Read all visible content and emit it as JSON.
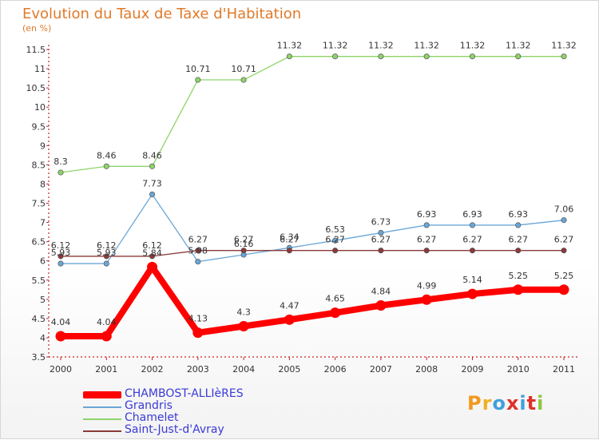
{
  "title": "Evolution du Taux de Taxe d'Habitation",
  "subtitle": "(en %)",
  "logo": {
    "letters": [
      "P",
      "r",
      "o",
      "x",
      "i",
      "t",
      "i"
    ],
    "colors": [
      "#f29a1d",
      "#f0b025",
      "#3fa0dc",
      "#e0302a",
      "#3fa0dc",
      "#e0302a",
      "#8cc63e"
    ]
  },
  "chart_data": {
    "type": "line",
    "x": [
      "2000",
      "2001",
      "2002",
      "2003",
      "2004",
      "2005",
      "2006",
      "2007",
      "2008",
      "2009",
      "2010",
      "2011"
    ],
    "ylim": [
      3.5,
      11.5
    ],
    "yticks": [
      "3.5",
      "4",
      "4.5",
      "5",
      "5.5",
      "6",
      "6.5",
      "7",
      "7.5",
      "8",
      "8.5",
      "9",
      "9.5",
      "10",
      "10.5",
      "11",
      "11.5"
    ],
    "grid": false,
    "legend_position": "bottom-left",
    "series": [
      {
        "name": "CHAMBOST-ALLIèRES",
        "color": "#ff0000",
        "values": [
          4.04,
          4.04,
          5.84,
          4.13,
          4.3,
          4.47,
          4.65,
          4.84,
          4.99,
          5.14,
          5.25,
          5.25
        ],
        "labels": [
          "4.04",
          "4.04",
          "5.84",
          "4.13",
          "4.3",
          "4.47",
          "4.65",
          "4.84",
          "4.99",
          "5.14",
          "5.25",
          "5.25"
        ]
      },
      {
        "name": "Grandris",
        "color": "#6aa6d6",
        "values": [
          5.93,
          5.93,
          7.73,
          5.98,
          6.16,
          6.34,
          6.53,
          6.73,
          6.93,
          6.93,
          6.93,
          7.06
        ],
        "labels": [
          "5.93",
          "5.93",
          "7.73",
          "5.98",
          "6.16",
          "6.34",
          "6.53",
          "6.73",
          "6.93",
          "6.93",
          "6.93",
          "7.06"
        ]
      },
      {
        "name": "Chamelet",
        "color": "#8ed36a",
        "values": [
          8.3,
          8.46,
          8.46,
          10.71,
          10.71,
          11.32,
          11.32,
          11.32,
          11.32,
          11.32,
          11.32,
          11.32
        ],
        "labels": [
          "8.3",
          "8.46",
          "8.46",
          "10.71",
          "10.71",
          "11.32",
          "11.32",
          "11.32",
          "11.32",
          "11.32",
          "11.32",
          "11.32"
        ]
      },
      {
        "name": "Saint-Just-d'Avray",
        "color": "#8a3a3a",
        "values": [
          6.12,
          6.12,
          6.12,
          6.27,
          6.27,
          6.27,
          6.27,
          6.27,
          6.27,
          6.27,
          6.27,
          6.27
        ],
        "labels": [
          "6.12",
          "6.12",
          "6.12",
          "6.27",
          "6.27",
          "6.27",
          "6.27",
          "6.27",
          "6.27",
          "6.27",
          "6.27",
          "6.27"
        ]
      }
    ]
  }
}
